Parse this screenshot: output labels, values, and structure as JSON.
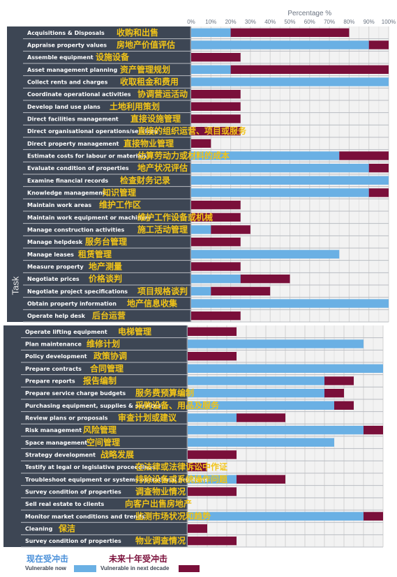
{
  "chart_data": [
    {
      "type": "bar",
      "stacked": true,
      "orientation": "horizontal",
      "title": "Percentage %",
      "ylabel": "Task",
      "xlim": [
        0,
        100
      ],
      "x_ticks": [
        "0%",
        "10%",
        "20%",
        "30%",
        "40%",
        "50%",
        "60%",
        "70%",
        "80%",
        "90%",
        "100%"
      ],
      "categories": [
        "Acquisitions & Disposals",
        "Appraise property values",
        "Assemble equipment",
        "Asset management planning",
        "Collect rents and charges",
        "Coordinate operational activities",
        "Develop land use plans",
        "Direct facilities management",
        "Direct organisational operations/services",
        "Direct property management",
        "Estimate costs for labour or materials",
        "Evaluate condition of properties",
        "Examine financial records",
        "Knowledge management",
        "Maintain work areas",
        "Maintain work equipment or machinery",
        "Manage construction activities",
        "Manage helpdesk",
        "Manage leases",
        "Measure property",
        "Negotiate prices",
        "Negotiate project specifications",
        "Obtain property information",
        "Operate help desk"
      ],
      "categories_cn": [
        "收购和出售",
        "房地产价值评估",
        "设施设备",
        "资产管理规划",
        "收取租金和费用",
        "协调营运活动",
        "土地利用策划",
        "直接设施管理",
        "直接的组织运营、项目或服务",
        "直接物业管理",
        "估算劳动力或材料的成本",
        "地产状况评估",
        "检查财务记录",
        "知识管理",
        "维护工作区",
        "维护工作设备或机械",
        "施工活动管理",
        "服务台管理",
        "租赁管理",
        "地产测量",
        "价格谈判",
        "项目规格谈判",
        "地产信息收集",
        "后台运营"
      ],
      "series": [
        {
          "name": "Vulnerable now",
          "color": "#6ab0e4",
          "values": [
            20,
            90,
            0,
            20,
            100,
            0,
            0,
            0,
            0,
            0,
            75,
            90,
            100,
            90,
            0,
            0,
            10,
            0,
            75,
            0,
            25,
            10,
            100,
            0
          ]
        },
        {
          "name": "Vulnerable in next decade",
          "color": "#7a0f3a",
          "values": [
            60,
            10,
            25,
            80,
            0,
            25,
            25,
            25,
            25,
            10,
            25,
            10,
            0,
            10,
            25,
            25,
            20,
            25,
            0,
            25,
            25,
            30,
            0,
            25
          ]
        }
      ]
    },
    {
      "type": "bar",
      "stacked": true,
      "orientation": "horizontal",
      "xlim": [
        0,
        100
      ],
      "categories": [
        "Operate lifting equipment",
        "Plan maintenance",
        "Policy development",
        "Prepare contracts",
        "Prepare reports",
        "Prepare service charge budgets",
        "Purchasing equipment, supplies & services",
        "Review plans or proposals",
        "Risk management",
        "Space management",
        "Strategy development",
        "Testify at legal or legislative proceedings",
        "Troubleshoot equipment or systems operational problems",
        "Survey condition of properties",
        "Sell real estate to clients",
        "Monitor market conditions and trends",
        "Cleaning",
        "Survey condition of properties"
      ],
      "categories_cn": [
        "电梯管理",
        "维修计划",
        "政策协调",
        "合同管理",
        "报告编制",
        "服务费预算编制",
        "采购设备、用品及服务",
        "审查计划或建议",
        "风险管理",
        "空间管理",
        "战略发展",
        "在法律或法律诉讼中作证",
        "排除设备或系统操作问题",
        "调查物业情况",
        "向客户出售房地产",
        "监测市场状况和趋势",
        "保洁",
        "物业调查情况"
      ],
      "series": [
        {
          "name": "Vulnerable now",
          "color": "#6ab0e4",
          "values": [
            0,
            90,
            0,
            100,
            70,
            70,
            75,
            25,
            90,
            75,
            0,
            0,
            25,
            0,
            0,
            90,
            0,
            0
          ]
        },
        {
          "name": "Vulnerable in next decade",
          "color": "#7a0f3a",
          "values": [
            25,
            0,
            25,
            0,
            15,
            10,
            10,
            25,
            10,
            0,
            25,
            10,
            25,
            25,
            0,
            10,
            10,
            25
          ]
        }
      ]
    }
  ],
  "legend": {
    "now_cn": "现在受冲击",
    "now_en": "Vulnerable now",
    "next_cn": "未来十年受冲击",
    "next_en": "Vulnerable in next decade",
    "now_color": "#6ab0e4",
    "next_color": "#7a0f3a"
  }
}
